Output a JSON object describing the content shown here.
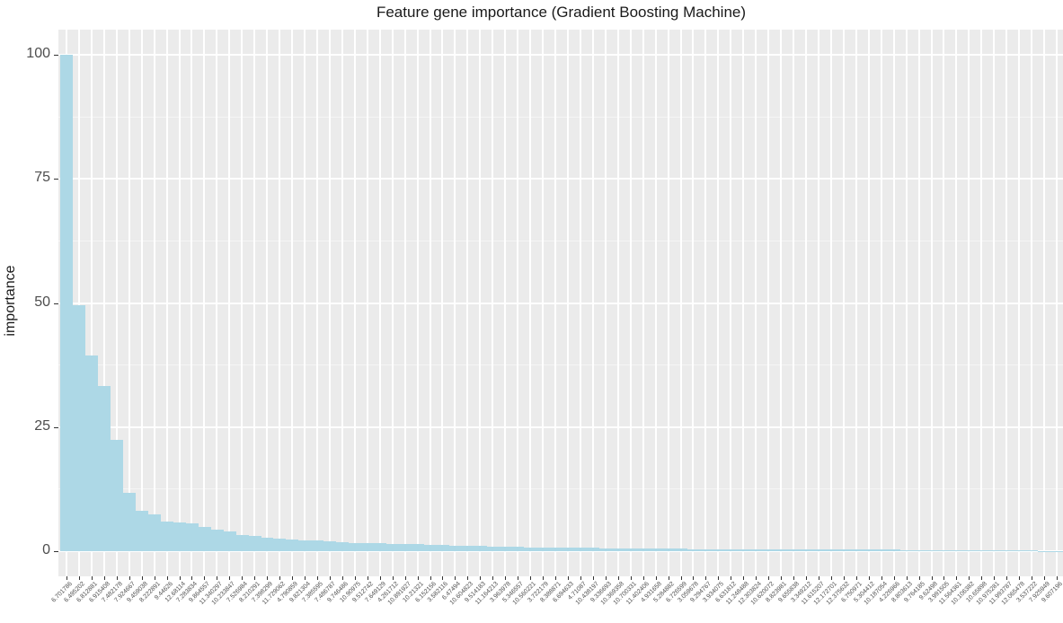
{
  "chart_data": {
    "type": "bar",
    "title": "Feature gene importance (Gradient Boosting Machine)",
    "xlabel": "",
    "ylabel": "importance",
    "ylim": [
      -5,
      105
    ],
    "yticks": [
      0,
      25,
      50,
      75,
      100
    ],
    "grid": true,
    "bar_color": "#add8e6",
    "panel_bg": "#ebebeb",
    "categories": [
      "6.701786",
      "6.495202",
      "6.812881",
      "6.915408",
      "7.482178",
      "7.924667",
      "9.459038",
      "8.222891",
      "9.44626",
      "12.68114",
      "7.283834",
      "9.864557",
      "11.340297",
      "10.233847",
      "7.526984",
      "8.210291",
      "7.398299",
      "11.729062",
      "4.790859",
      "9.821304",
      "7.385595",
      "7.486787",
      "9.746486",
      "10.90975",
      "9.512742",
      "7.649129",
      "4.261712",
      "10.891927",
      "10.21321",
      "6.152156",
      "3.582116",
      "6.47494",
      "10.604823",
      "9.514183",
      "11.164213",
      "3.963978",
      "5.346557",
      "10.560221",
      "3.722179",
      "8.388871",
      "6.694633",
      "4.71087",
      "10.438197",
      "9.336693",
      "10.369358",
      "10.700331",
      "11.402406",
      "4.931658",
      "5.284882",
      "6.726599",
      "3.059678",
      "9.294767",
      "3.934075",
      "6.631812",
      "11.248488",
      "12.303824",
      "10.620072",
      "8.823981",
      "9.655838",
      "3.349212",
      "11.615207",
      "12.172701",
      "12.375632",
      "6.750971",
      "5.304412",
      "10.187054",
      "4.226966",
      "8.803613",
      "9.764185",
      "9.62498",
      "3.991505",
      "11.564361",
      "10.106382",
      "10.65898",
      "10.975281",
      "11.993787",
      "12.065478",
      "3.537222",
      "7.925949",
      "9.607196"
    ],
    "values": [
      100,
      49.6,
      39.4,
      33.2,
      22.4,
      11.7,
      8.2,
      7.4,
      6.0,
      5.8,
      5.6,
      4.8,
      4.3,
      3.9,
      3.2,
      3.1,
      2.7,
      2.5,
      2.3,
      2.2,
      2.1,
      2.0,
      1.8,
      1.7,
      1.6,
      1.55,
      1.5,
      1.45,
      1.4,
      1.3,
      1.2,
      1.1,
      1.0,
      1.0,
      0.95,
      0.9,
      0.85,
      0.8,
      0.75,
      0.7,
      0.7,
      0.65,
      0.65,
      0.6,
      0.6,
      0.55,
      0.55,
      0.5,
      0.5,
      0.5,
      0.45,
      0.45,
      0.45,
      0.4,
      0.4,
      0.4,
      0.38,
      0.36,
      0.35,
      0.34,
      0.33,
      0.32,
      0.31,
      0.3,
      0.3,
      0.29,
      0.28,
      0.27,
      0.26,
      0.25,
      0.24,
      0.22,
      0.2,
      0.18,
      0.16,
      0.14,
      0.12,
      0.1,
      0.08,
      0.06
    ]
  }
}
